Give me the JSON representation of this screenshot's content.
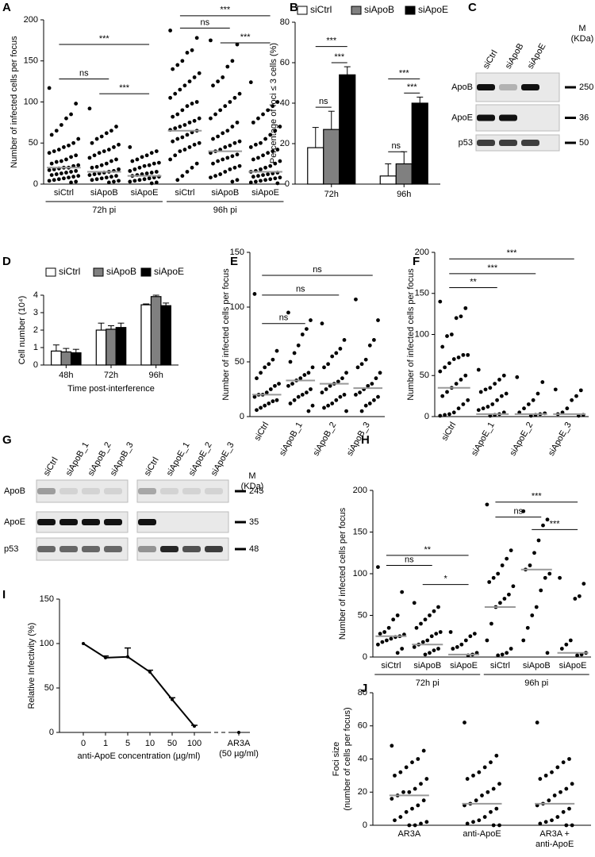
{
  "chart_data": [
    {
      "type": "dot",
      "label": "A",
      "ylabel": "Number of infected cells per focus",
      "categories": [
        "siCtrl",
        "siApoB",
        "siApoE",
        "siCtrl",
        "siApoB",
        "siApoE"
      ],
      "groups": [
        "72h pi",
        "96h pi"
      ],
      "values": [
        [
          117,
          98,
          85,
          80,
          72,
          65,
          60,
          55,
          50,
          47,
          45,
          42,
          40,
          38,
          35,
          33,
          30,
          28,
          27,
          25,
          23,
          22,
          20,
          20,
          19,
          18,
          17,
          16,
          15,
          14,
          13,
          12,
          11,
          10,
          9,
          8,
          7,
          6,
          5,
          4,
          3,
          2
        ],
        [
          92,
          70,
          65,
          62,
          58,
          55,
          50,
          48,
          45,
          42,
          40,
          38,
          35,
          32,
          30,
          28,
          25,
          23,
          21,
          20,
          18,
          16,
          15,
          14,
          13,
          12,
          11,
          10,
          9,
          8,
          7,
          6,
          5,
          4,
          3,
          2
        ],
        [
          45,
          40,
          38,
          35,
          33,
          30,
          28,
          26,
          25,
          23,
          22,
          20,
          18,
          16,
          15,
          14,
          13,
          12,
          11,
          10,
          9,
          8,
          7,
          6,
          5,
          4,
          3,
          2,
          1
        ],
        [
          187,
          178,
          163,
          160,
          150,
          145,
          140,
          135,
          130,
          125,
          120,
          115,
          110,
          105,
          100,
          98,
          95,
          90,
          85,
          82,
          80,
          77,
          75,
          72,
          70,
          68,
          66,
          65,
          63,
          60,
          57,
          55,
          52,
          50,
          48,
          45,
          42,
          40,
          35,
          30,
          25,
          20,
          15,
          10,
          5
        ],
        [
          175,
          170,
          150,
          143,
          130,
          125,
          120,
          110,
          105,
          100,
          95,
          90,
          85,
          80,
          75,
          70,
          65,
          62,
          58,
          55,
          52,
          50,
          47,
          45,
          42,
          40,
          38,
          36,
          34,
          32,
          30,
          28,
          25,
          22,
          20,
          18,
          15,
          12,
          10,
          8,
          5,
          3
        ],
        [
          124,
          100,
          95,
          90,
          85,
          80,
          75,
          70,
          65,
          60,
          55,
          50,
          48,
          45,
          42,
          40,
          38,
          35,
          32,
          30,
          28,
          25,
          22,
          20,
          18,
          16,
          15,
          14,
          13,
          12,
          11,
          10,
          9,
          8,
          7,
          6,
          5,
          4,
          3,
          2,
          1
        ]
      ],
      "medians": [
        20,
        15,
        10,
        65,
        40,
        15
      ],
      "ylim": [
        0,
        200
      ],
      "yticks": [
        0,
        50,
        100,
        150,
        200
      ],
      "brackets": [
        {
          "from": 0,
          "to": 2,
          "label": "***"
        },
        {
          "from": 0,
          "to": 1,
          "label": "ns"
        },
        {
          "from": 1,
          "to": 2,
          "label": "***"
        },
        {
          "from": 3,
          "to": 5,
          "label": "***"
        },
        {
          "from": 3,
          "to": 4,
          "label": "ns"
        },
        {
          "from": 4,
          "to": 5,
          "label": "***"
        }
      ]
    },
    {
      "type": "bar",
      "label": "B",
      "ylabel": "Percentage of foci ≤ 3 cells (%)",
      "categories": [
        "72h",
        "96h"
      ],
      "series": [
        {
          "name": "siCtrl",
          "color": "#ffffff",
          "values": [
            18,
            4
          ],
          "errors": [
            10,
            6
          ]
        },
        {
          "name": "siApoB",
          "color": "#808080",
          "values": [
            27,
            10
          ],
          "errors": [
            9,
            6
          ]
        },
        {
          "name": "siApoE",
          "color": "#000000",
          "values": [
            54,
            40
          ],
          "errors": [
            4,
            3
          ]
        }
      ],
      "ylim": [
        0,
        80
      ],
      "yticks": [
        0,
        20,
        40,
        60,
        80
      ],
      "brackets": [
        {
          "category": 0,
          "from": 0,
          "to": 2,
          "label": "***"
        },
        {
          "category": 0,
          "from": 1,
          "to": 2,
          "label": "***"
        },
        {
          "category": 0,
          "from": 0,
          "to": 1,
          "label": "ns"
        },
        {
          "category": 1,
          "from": 0,
          "to": 2,
          "label": "***"
        },
        {
          "category": 1,
          "from": 1,
          "to": 2,
          "label": "***"
        },
        {
          "category": 1,
          "from": 0,
          "to": 1,
          "label": "ns"
        }
      ]
    },
    {
      "type": "bar",
      "label": "D",
      "ylabel": "Cell number (10⁴)",
      "xlabel": "Time post-interference",
      "categories": [
        "48h",
        "72h",
        "96h"
      ],
      "series": [
        {
          "name": "siCtrl",
          "color": "#ffffff",
          "values": [
            0.8,
            2.0,
            3.45
          ],
          "errors": [
            0.35,
            0.4,
            0.05
          ]
        },
        {
          "name": "siApoB",
          "color": "#808080",
          "values": [
            0.75,
            2.05,
            3.92
          ],
          "errors": [
            0.2,
            0.2,
            0.08
          ]
        },
        {
          "name": "siApoE",
          "color": "#000000",
          "values": [
            0.7,
            2.15,
            3.4
          ],
          "errors": [
            0.2,
            0.25,
            0.15
          ]
        }
      ],
      "ylim": [
        0,
        4
      ],
      "yticks": [
        0,
        1,
        2,
        3,
        4
      ]
    },
    {
      "type": "dot",
      "label": "E",
      "ylabel": "Number of infected cells per focus",
      "categories": [
        "siCtrl",
        "siApoB_1",
        "siApoB_2",
        "siApoB_3"
      ],
      "values": [
        [
          112,
          60,
          52,
          48,
          45,
          40,
          35,
          30,
          28,
          25,
          22,
          20,
          20,
          18,
          15,
          14,
          12,
          10,
          8,
          6
        ],
        [
          95,
          88,
          80,
          75,
          65,
          58,
          50,
          45,
          40,
          38,
          35,
          33,
          30,
          28,
          25,
          22,
          20,
          18,
          15,
          12,
          10,
          5
        ],
        [
          85,
          70,
          62,
          58,
          55,
          48,
          45,
          40,
          35,
          32,
          30,
          28,
          25,
          22,
          20,
          18,
          15,
          12,
          10,
          8,
          5
        ],
        [
          107,
          88,
          70,
          65,
          52,
          48,
          45,
          40,
          35,
          30,
          28,
          25,
          22,
          20,
          18,
          15,
          12,
          10,
          5
        ]
      ],
      "medians": [
        20,
        33,
        30,
        26
      ],
      "ylim": [
        0,
        150
      ],
      "yticks": [
        0,
        50,
        100,
        150
      ],
      "brackets": [
        {
          "from": 0,
          "to": 1,
          "label": "ns"
        },
        {
          "from": 0,
          "to": 2,
          "label": "ns"
        },
        {
          "from": 0,
          "to": 3,
          "label": "ns"
        }
      ]
    },
    {
      "type": "dot",
      "label": "F",
      "ylabel": "Number of infected cells per focus",
      "categories": [
        "siCtrl",
        "siApoE_1",
        "siApoE_2",
        "siApoE_3"
      ],
      "values": [
        [
          140,
          132,
          122,
          120,
          100,
          98,
          85,
          75,
          75,
          72,
          70,
          65,
          60,
          55,
          50,
          45,
          40,
          35,
          30,
          25,
          20,
          15,
          10,
          5,
          3,
          2,
          1
        ],
        [
          57,
          50,
          45,
          40,
          35,
          33,
          30,
          28,
          25,
          20,
          15,
          12,
          10,
          8,
          5,
          3,
          2,
          1
        ],
        [
          48,
          42,
          28,
          20,
          15,
          10,
          5,
          4,
          3,
          2,
          1
        ],
        [
          33,
          32,
          25,
          20,
          10,
          5,
          3,
          2,
          1
        ]
      ],
      "medians": [
        35,
        3,
        3,
        3
      ],
      "ylim": [
        0,
        200
      ],
      "yticks": [
        0,
        50,
        100,
        150,
        200
      ],
      "brackets": [
        {
          "from": 0,
          "to": 1,
          "label": "**"
        },
        {
          "from": 0,
          "to": 2,
          "label": "***"
        },
        {
          "from": 0,
          "to": 3,
          "label": "***"
        }
      ]
    },
    {
      "type": "dot",
      "label": "H",
      "ylabel": "Number of infected cells per focus",
      "categories": [
        "siCtrl",
        "siApoB",
        "siApoE",
        "siCtrl",
        "siApoB",
        "siApoE"
      ],
      "groups": [
        "72h pi",
        "96h pi"
      ],
      "values": [
        [
          108,
          78,
          50,
          45,
          35,
          30,
          28,
          27,
          25,
          24,
          22,
          20,
          18,
          15,
          10,
          5
        ],
        [
          65,
          60,
          55,
          50,
          45,
          40,
          35,
          30,
          28,
          25,
          20,
          18,
          15,
          12,
          10,
          8,
          5,
          3
        ],
        [
          30,
          28,
          25,
          20,
          15,
          12,
          10,
          5,
          3,
          2
        ],
        [
          183,
          128,
          118,
          110,
          100,
          95,
          90,
          85,
          75,
          70,
          65,
          60,
          40,
          20,
          10,
          5,
          3,
          2
        ],
        [
          175,
          165,
          158,
          140,
          125,
          110,
          105,
          100,
          95,
          80,
          60,
          50,
          35,
          20,
          5
        ],
        [
          95,
          88,
          73,
          70,
          20,
          15,
          10,
          5,
          3,
          2
        ]
      ],
      "medians": [
        25,
        15,
        3,
        60,
        105,
        5
      ],
      "ylim": [
        0,
        200
      ],
      "yticks": [
        0,
        50,
        100,
        150,
        200
      ],
      "brackets": [
        {
          "from": 0,
          "to": 2,
          "label": "**"
        },
        {
          "from": 0,
          "to": 1,
          "label": "ns"
        },
        {
          "from": 1,
          "to": 2,
          "label": "*"
        },
        {
          "from": 3,
          "to": 5,
          "label": "***"
        },
        {
          "from": 3,
          "to": 4,
          "label": "ns"
        },
        {
          "from": 4,
          "to": 5,
          "label": "***"
        }
      ]
    },
    {
      "type": "line",
      "label": "I",
      "ylabel": "Relative Infectivity (%)",
      "xlabel": "anti-ApoE concentration (µg/ml)",
      "categories": [
        "0",
        "1",
        "5",
        "10",
        "50",
        "100",
        null,
        [
          "AR3A",
          "(50 µg/ml)"
        ]
      ],
      "values": [
        100,
        84,
        85,
        68,
        37,
        7,
        null,
        0
      ],
      "errors": [
        0,
        2,
        10,
        2,
        2,
        1,
        null,
        0
      ],
      "color": "#000000",
      "ylim": [
        0,
        150
      ],
      "yticks": [
        0,
        50,
        100,
        150
      ]
    },
    {
      "type": "dot",
      "label": "J",
      "ylabel": [
        "Foci size",
        "(number of cells per focus)"
      ],
      "categories": [
        "AR3A",
        "anti-ApoE",
        [
          "AR3A +",
          "anti-ApoE"
        ]
      ],
      "values": [
        [
          48,
          45,
          40,
          38,
          35,
          32,
          30,
          28,
          25,
          22,
          20,
          20,
          18,
          16,
          15,
          12,
          10,
          8,
          5,
          3,
          2,
          1,
          0,
          0
        ],
        [
          62,
          42,
          38,
          35,
          32,
          30,
          28,
          25,
          22,
          20,
          18,
          15,
          13,
          12,
          10,
          8,
          5,
          3,
          2,
          1,
          0,
          0
        ],
        [
          62,
          40,
          38,
          35,
          32,
          30,
          28,
          25,
          22,
          20,
          18,
          15,
          13,
          12,
          10,
          8,
          5,
          3,
          2,
          1,
          0,
          0
        ]
      ],
      "medians": [
        18,
        13,
        13
      ],
      "ylim": [
        0,
        80
      ],
      "yticks": [
        0,
        20,
        40,
        60,
        80
      ]
    }
  ],
  "blots": [
    {
      "label": "C",
      "lanes": [
        [
          "siCtrl",
          "siApoB",
          "siApoE"
        ]
      ],
      "rows": [
        "ApoB",
        "ApoE",
        "p53"
      ],
      "markers": [
        "250",
        "36",
        "50"
      ],
      "unit": [
        "M",
        "(KDa)"
      ]
    },
    {
      "label": "G",
      "lanes": [
        [
          "siCtrl",
          "siApoB_1",
          "siApoB_2",
          "siApoB_3"
        ],
        [
          "siCtrl",
          "siApoE_1",
          "siApoE_2",
          "siApoE_3"
        ]
      ],
      "rows": [
        "ApoB",
        "ApoE",
        "p53"
      ],
      "markers": [
        "245",
        "35",
        "48"
      ],
      "unit": [
        "M",
        "(KDa)"
      ]
    }
  ]
}
